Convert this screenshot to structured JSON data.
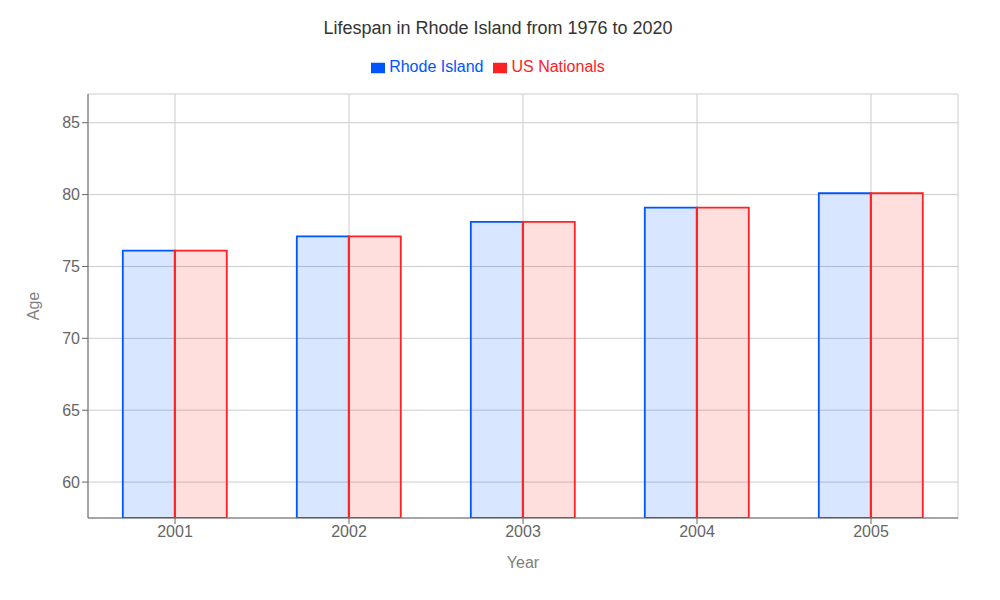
{
  "chart_data": {
    "type": "bar",
    "title": "Lifespan in Rhode Island from 1976 to 2020",
    "x_label": "Year",
    "y_label": "Age",
    "categories": [
      "2001",
      "2002",
      "2003",
      "2004",
      "2005"
    ],
    "series": [
      {
        "name": "Rhode Island",
        "color": "#0055ff",
        "values": [
          76.1,
          77.1,
          78.1,
          79.1,
          80.1
        ]
      },
      {
        "name": "US Nationals",
        "color": "#ff2222",
        "values": [
          76.1,
          77.1,
          78.1,
          79.1,
          80.1
        ]
      }
    ],
    "ylim": [
      57.5,
      87
    ],
    "yticks": [
      60,
      65,
      70,
      75,
      80,
      85
    ],
    "grid": true,
    "legend": "top"
  }
}
